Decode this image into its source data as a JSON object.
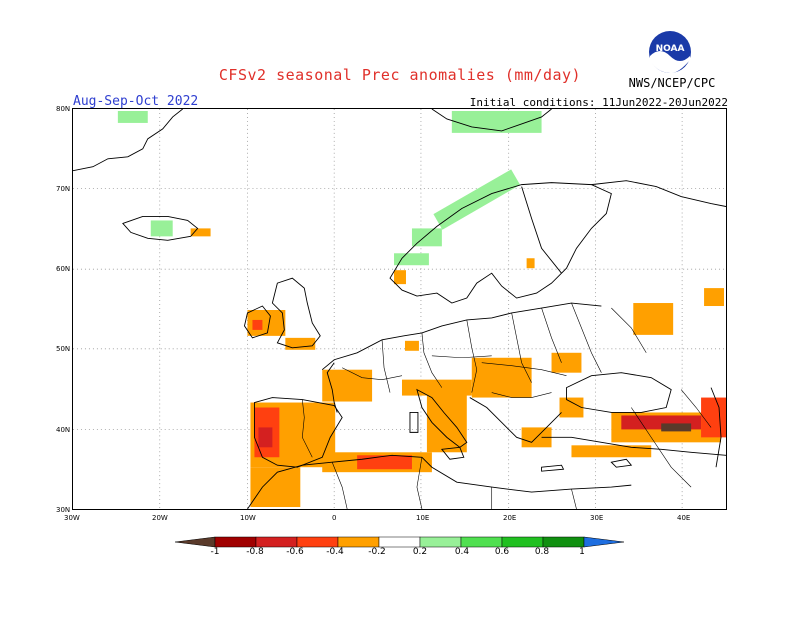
{
  "title": "CFSv2 seasonal Prec anomalies (mm/day)",
  "period": "Aug-Sep-Oct 2022",
  "initial_conditions": "Initial conditions: 11Jun2022-20Jun2022",
  "agency": "NWS/NCEP/CPC",
  "logo_text": "NOAA",
  "logo_icon": "noaa-logo-icon",
  "map": {
    "lon_range": [
      -30,
      45
    ],
    "lat_range": [
      30,
      80
    ],
    "grid": "dotted",
    "lat_labels": [
      "80N",
      "70N",
      "60N",
      "50N",
      "40N",
      "30N"
    ],
    "lon_labels": [
      "30W",
      "20W",
      "10W",
      "0",
      "10E",
      "20E",
      "30E",
      "40E"
    ]
  },
  "colorbar": {
    "labels": [
      "-1",
      "-0.8",
      "-0.6",
      "-0.4",
      "-0.2",
      "0.2",
      "0.4",
      "0.6",
      "0.8",
      "1"
    ],
    "colors": [
      "#5a3a2a",
      "#a00000",
      "#d42020",
      "#ff4010",
      "#ffa000",
      "#ffffff",
      "#98f098",
      "#50e050",
      "#20c020",
      "#109010",
      "#1e6ee0"
    ]
  },
  "anomaly_colors": {
    "dry_weak": "#ffa000",
    "dry_mid": "#ff4010",
    "dry_strong": "#d42020",
    "dry_extreme": "#5a3a2a",
    "wet_weak": "#98f098"
  }
}
